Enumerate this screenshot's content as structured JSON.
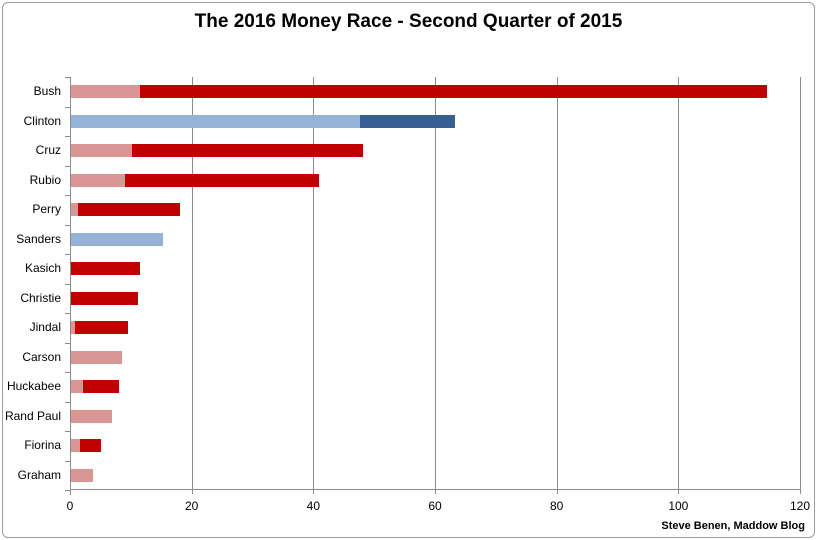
{
  "title": "The 2016 Money Race - Second Quarter of 2015",
  "attribution": "Steve Benen, Maddow Blog",
  "colors": {
    "republican_light": "#D99694",
    "republican_dark": "#C00000",
    "democrat_light": "#95B3D7",
    "democrat_dark": "#376092",
    "gridline": "#8C8C8C",
    "axis": "#8C8C8C",
    "frame_border": "#9D9D9D",
    "text": "#000000"
  },
  "chart_data": {
    "type": "bar",
    "orientation": "horizontal",
    "stacked": true,
    "title": "The 2016 Money Race - Second Quarter of 2015",
    "categories": [
      "Bush",
      "Clinton",
      "Cruz",
      "Rubio",
      "Perry",
      "Sanders",
      "Kasich",
      "Christie",
      "Jindal",
      "Carson",
      "Huckabee",
      "Rand Paul",
      "Fiorina",
      "Graham"
    ],
    "series": [
      {
        "name": "light-segment",
        "values": [
          11.4,
          47.5,
          10.0,
          8.9,
          1.1,
          15.2,
          0,
          0,
          0.6,
          8.4,
          2.0,
          6.8,
          1.4,
          3.6
        ]
      },
      {
        "name": "dark-segment",
        "values": [
          103.0,
          15.6,
          38.0,
          31.8,
          16.8,
          0,
          11.4,
          11.0,
          8.7,
          0,
          5.9,
          0,
          3.6,
          0
        ]
      }
    ],
    "totals": [
      114.4,
      63.1,
      48.0,
      40.7,
      17.9,
      15.2,
      11.4,
      11.0,
      9.3,
      8.4,
      7.9,
      6.8,
      5.0,
      3.6
    ],
    "category_palette": [
      "red",
      "blue",
      "red",
      "red",
      "red",
      "blue",
      "red",
      "red",
      "red",
      "red",
      "red",
      "red",
      "red",
      "red"
    ],
    "xlabel": "",
    "ylabel": "",
    "xlim": [
      0,
      120
    ],
    "x_ticks": [
      0,
      20,
      40,
      60,
      80,
      100,
      120
    ],
    "grid": "vertical",
    "legend": "none",
    "annotation": "Steve Benen, Maddow Blog"
  }
}
